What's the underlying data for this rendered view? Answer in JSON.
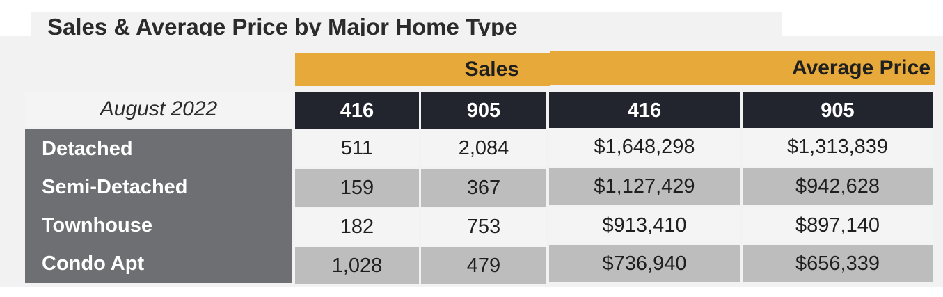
{
  "title": "Sales & Average Price by Major Home Type",
  "group_headers": {
    "sales": "Sales",
    "average_price": "Average Price"
  },
  "period": "August 2022",
  "columns": [
    "416",
    "905",
    "416",
    "905"
  ],
  "rows": [
    {
      "label": "Detached",
      "values": [
        "511",
        "2,084",
        "$1,648,298",
        "$1,313,839"
      ]
    },
    {
      "label": "Semi-Detached",
      "values": [
        "159",
        "367",
        "$1,127,429",
        "$942,628"
      ]
    },
    {
      "label": "Townhouse",
      "values": [
        "182",
        "753",
        "$913,410",
        "$897,140"
      ]
    },
    {
      "label": "Condo Apt",
      "values": [
        "1,028",
        "479",
        "$736,940",
        "$656,339"
      ]
    }
  ],
  "colors": {
    "orange_header": "#e6a93a",
    "dark_header": "#23252e",
    "row_label_bg": "#6e6f73",
    "light_cell": "#f4f4f4",
    "shaded_cell": "#bdbdbd"
  }
}
